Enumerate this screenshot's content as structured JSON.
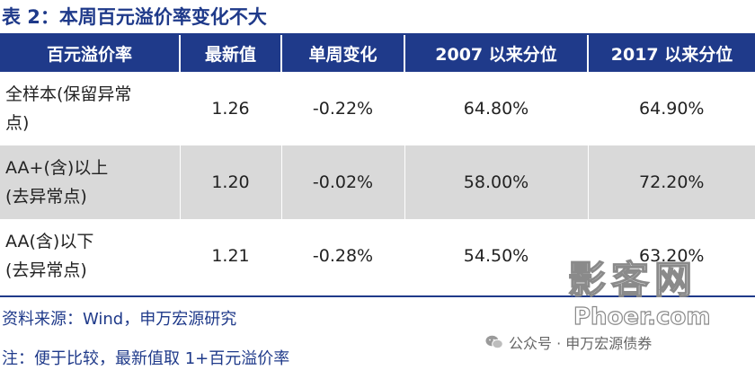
{
  "title": "表 2：本周百元溢价率变化不大",
  "table": {
    "headers": [
      "百元溢价率",
      "最新值",
      "单周变化",
      "2007 以来分位",
      "2017 以来分位"
    ],
    "rows": [
      {
        "label_line1": "全样本(保留异常",
        "label_line2": "点)",
        "latest": "1.26",
        "weekly_change": "-0.22%",
        "pct_since_2007": "64.80%",
        "pct_since_2017": "64.90%"
      },
      {
        "label_line1": "AA+(含)以上",
        "label_line2": "(去异常点)",
        "latest": "1.20",
        "weekly_change": "-0.02%",
        "pct_since_2007": "58.00%",
        "pct_since_2017": "72.20%"
      },
      {
        "label_line1": "AA(含)以下",
        "label_line2": "(去异常点)",
        "latest": "1.21",
        "weekly_change": "-0.28%",
        "pct_since_2007": "54.50%",
        "pct_since_2017": "63.20%"
      }
    ]
  },
  "source_note": "资料来源：Wind，申万宏源研究",
  "footnote": "注：便于比较，最新值取 1+百元溢价率",
  "watermark": {
    "main": "影客网",
    "url": "Phoer.com",
    "wechat": "公众号 · 申万宏源债券",
    "icon": "wechat-icon"
  },
  "colors": {
    "header_bg": "#1f3a8a",
    "shade_row": "#d9d9d9",
    "text_blue": "#1f3a8a"
  }
}
